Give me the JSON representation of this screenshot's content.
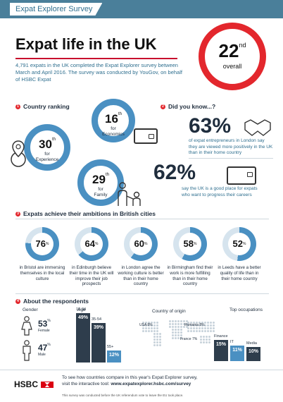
{
  "banner": {
    "tag": "Expat Explorer Survey"
  },
  "title": "Expat life in the UK",
  "intro": "4,791 expats in the UK completed the Expat Explorer survey between March and April 2016. The survey was conducted by YouGov, on behalf of HSBC Expat",
  "overall": {
    "number": "22",
    "suffix": "nd",
    "label": "overall"
  },
  "section1": {
    "num": "1",
    "title": "Country ranking"
  },
  "rankings": [
    {
      "number": "16",
      "suffix": "th",
      "label1": "for",
      "label2": "Economics"
    },
    {
      "number": "30",
      "suffix": "th",
      "label1": "for",
      "label2": "Experience"
    },
    {
      "number": "29",
      "suffix": "th",
      "label1": "for",
      "label2": "Family"
    }
  ],
  "section2": {
    "num": "2",
    "title": "Did you know...?"
  },
  "facts": [
    {
      "value": "63%",
      "text": "of expat entrepreneurs in London say they are viewed more positively in the UK than in their home country"
    },
    {
      "value": "62%",
      "text": "say the UK is a good place for expats who want to progress their careers"
    }
  ],
  "section3": {
    "num": "3",
    "title": "Expats achieve their ambitions in British cities"
  },
  "cities": [
    {
      "value": 76,
      "label": "76",
      "sup": "%",
      "text": "in Bristol are immersing themselves in the local culture"
    },
    {
      "value": 64,
      "label": "64",
      "sup": "%",
      "text": "in Edinburgh believe their time in the UK will improve their job prospects"
    },
    {
      "value": 60,
      "label": "60",
      "sup": "%",
      "text": "in London agree the working culture is better than in their home country"
    },
    {
      "value": 58,
      "label": "58",
      "sup": "%",
      "text": "in Birmingham find their work is more fulfilling than in their home country"
    },
    {
      "value": 52,
      "label": "52",
      "sup": "%",
      "text": "in Leeds have a better quality of life than in their home country"
    }
  ],
  "section4": {
    "num": "4",
    "title": "About the respondents"
  },
  "gender": {
    "title": "Gender",
    "female": {
      "value": "53",
      "sup": "%",
      "label": "Female"
    },
    "male": {
      "value": "47",
      "sup": "%",
      "label": "Male"
    }
  },
  "age": {
    "title": "Age",
    "bars": [
      {
        "label": "18-34",
        "value": 49,
        "text": "49%"
      },
      {
        "label": "35-54",
        "value": 39,
        "text": "39%"
      },
      {
        "label": "55+",
        "value": 12,
        "text": "12%"
      }
    ]
  },
  "origin": {
    "title": "Country of origin",
    "items": [
      {
        "label": "USA 8%"
      },
      {
        "label": "Romania 8%"
      },
      {
        "label": "France 7%"
      }
    ]
  },
  "occupations": {
    "title": "Top occupations",
    "bars": [
      {
        "label": "Finance",
        "value": 15,
        "text": "15%"
      },
      {
        "label": "IT",
        "value": 11,
        "text": "11%"
      },
      {
        "label": "Media",
        "value": 10,
        "text": "10%"
      }
    ]
  },
  "footer": {
    "logo": "HSBC",
    "line1": "To see how countries compare in this year's Expat Explorer survey,",
    "line2": "visit the interactive tool: ",
    "url": "www.expatexplorer.hsbc.com/survey",
    "note": "This survey was conducted before the UK referendum vote to leave the EU took place."
  },
  "colors": {
    "accent": "#e3272d",
    "blue": "#4a90c2",
    "dark": "#2e3d4c",
    "banner": "#4a7f9a"
  }
}
